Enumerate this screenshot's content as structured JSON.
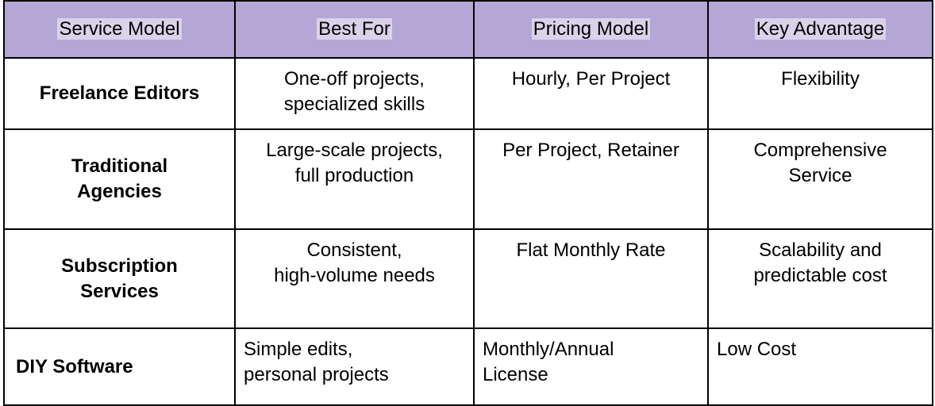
{
  "table": {
    "headers": [
      "Service Model",
      "Best For",
      "Pricing Model",
      "Key Advantage"
    ],
    "rows": [
      {
        "service_model": [
          "Freelance Editors"
        ],
        "best_for": [
          "One-off projects,",
          "specialized skills"
        ],
        "pricing_model": [
          "Hourly, Per Project"
        ],
        "key_advantage": [
          "Flexibility"
        ]
      },
      {
        "service_model": [
          "Traditional",
          "Agencies"
        ],
        "best_for": [
          "Large-scale projects,",
          "full production"
        ],
        "pricing_model": [
          "Per Project, Retainer"
        ],
        "key_advantage": [
          "Comprehensive",
          "Service"
        ]
      },
      {
        "service_model": [
          "Subscription",
          "Services"
        ],
        "best_for": [
          "Consistent,",
          "high-volume needs"
        ],
        "pricing_model": [
          "Flat Monthly Rate"
        ],
        "key_advantage": [
          "Scalability and",
          "predictable cost"
        ]
      },
      {
        "service_model": [
          "DIY Software"
        ],
        "best_for": [
          "Simple edits,",
          "personal projects"
        ],
        "pricing_model": [
          "Monthly/Annual",
          "License"
        ],
        "key_advantage": [
          "Low Cost"
        ]
      }
    ]
  },
  "colors": {
    "header_background": "#b4a7d6",
    "header_text_highlight": "#d9d2e9",
    "border": "#000000"
  }
}
